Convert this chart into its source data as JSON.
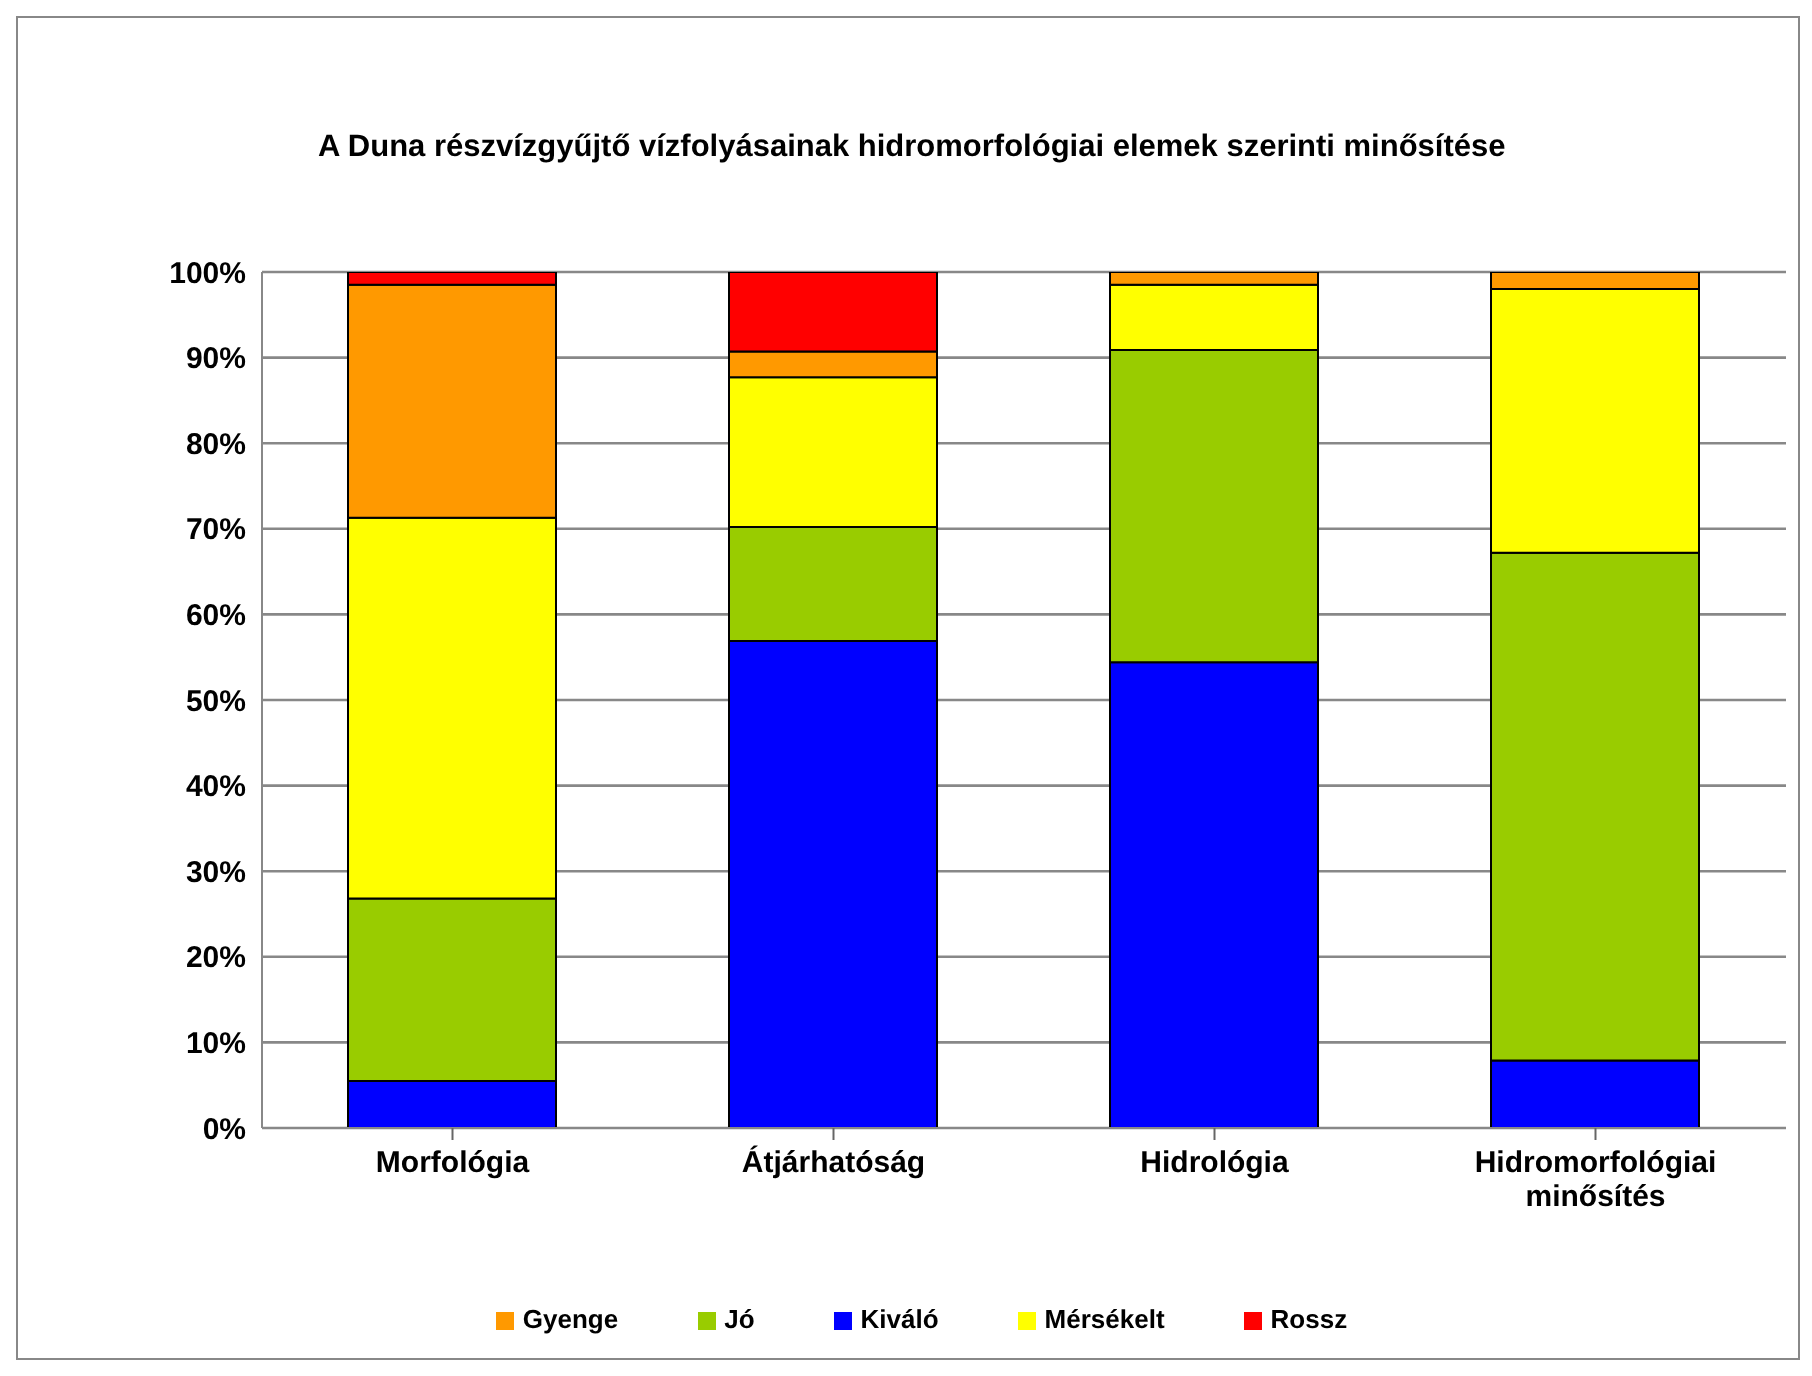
{
  "chart_data": {
    "type": "bar",
    "title": "A Duna részvízgyűjtő vízfolyásainak hidromorfológiai elemek szerinti  minősítése",
    "categories": [
      "Morfológia",
      "Átjárhatóság",
      "Hidrológia",
      "Hidromorfológiai minősítés"
    ],
    "stacked": true,
    "series": [
      {
        "name": "Kiváló",
        "color": "#0000ff",
        "values": [
          5.5,
          56.9,
          54.4,
          7.9
        ]
      },
      {
        "name": "Jó",
        "color": "#99cc00",
        "values": [
          21.3,
          13.3,
          36.5,
          59.3
        ]
      },
      {
        "name": "Mérsékelt",
        "color": "#ffff00",
        "values": [
          44.5,
          17.5,
          7.6,
          30.8
        ]
      },
      {
        "name": "Gyenge",
        "color": "#ff9900",
        "values": [
          27.2,
          3.0,
          1.5,
          2.0
        ]
      },
      {
        "name": "Rossz",
        "color": "#ff0000",
        "values": [
          1.5,
          9.3,
          0,
          0
        ]
      }
    ],
    "ylim": [
      0,
      100
    ],
    "yticks": [
      {
        "value": 0,
        "label": "0%"
      },
      {
        "value": 10,
        "label": "10%"
      },
      {
        "value": 20,
        "label": "20%"
      },
      {
        "value": 30,
        "label": "30%"
      },
      {
        "value": 40,
        "label": "40%"
      },
      {
        "value": 50,
        "label": "50%"
      },
      {
        "value": 60,
        "label": "60%"
      },
      {
        "value": 70,
        "label": "70%"
      },
      {
        "value": 80,
        "label": "80%"
      },
      {
        "value": 90,
        "label": "90%"
      },
      {
        "value": 100,
        "label": "100%"
      }
    ],
    "grid": "y",
    "legend": "bottom"
  }
}
